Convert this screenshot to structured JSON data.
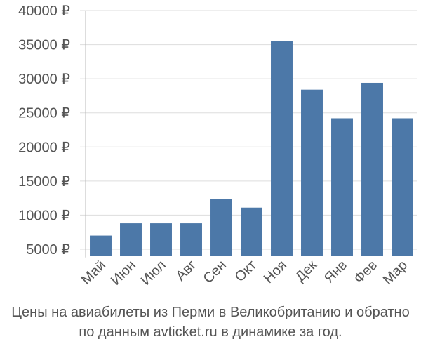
{
  "chart_data": {
    "type": "bar",
    "categories": [
      "Май",
      "Июн",
      "Июл",
      "Авг",
      "Сен",
      "Окт",
      "Ноя",
      "Дек",
      "Янв",
      "Фев",
      "Мар"
    ],
    "values": [
      7000,
      8800,
      8800,
      8800,
      12400,
      11100,
      35500,
      28400,
      24200,
      29400,
      24200
    ],
    "y_ticks": [
      5000,
      10000,
      15000,
      20000,
      25000,
      30000,
      35000,
      40000
    ],
    "y_tick_labels": [
      "5000 ₽",
      "10000 ₽",
      "15000 ₽",
      "20000 ₽",
      "25000 ₽",
      "30000 ₽",
      "35000 ₽",
      "40000 ₽"
    ],
    "ylim": [
      4000,
      40000
    ],
    "grid": true,
    "bar_color": "#4c78a8",
    "caption_line1": "Цены на авиабилеты из Перми в Великобританию и обратно",
    "caption_line2": "по данным avticket.ru в динамике за год."
  }
}
